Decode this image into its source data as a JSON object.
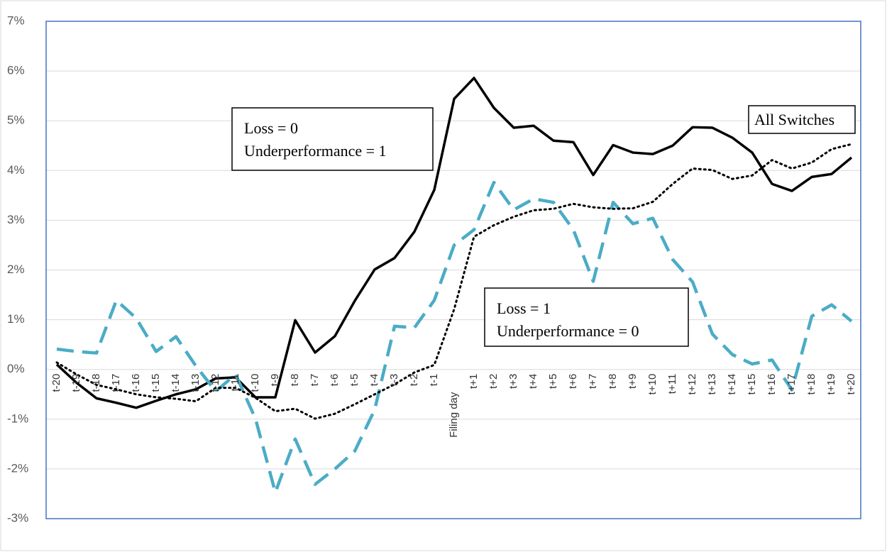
{
  "chart_data": {
    "type": "line",
    "categories": [
      "t-20",
      "t-19",
      "t-18",
      "t-17",
      "t-16",
      "t-15",
      "t-14",
      "t-13",
      "t-12",
      "t-11",
      "t-10",
      "t-9",
      "t-8",
      "t-7",
      "t-6",
      "t-5",
      "t-4",
      "t-3",
      "t-2",
      "t-1",
      "Filing day",
      "t+1",
      "t+2",
      "t+3",
      "t+4",
      "t+5",
      "t+6",
      "t+7",
      "t+8",
      "t+9",
      "t+10",
      "t+11",
      "t+12",
      "t+13",
      "t+14",
      "t+15",
      "t+16",
      "t+17",
      "t+18",
      "t+19",
      "t+20"
    ],
    "series": [
      {
        "color": "#000000",
        "style": "solid",
        "values": [
          0.1,
          -0.27,
          -0.58,
          -0.67,
          -0.77,
          -0.63,
          -0.5,
          -0.4,
          -0.18,
          -0.16,
          -0.56,
          -0.56,
          0.99,
          0.34,
          0.67,
          1.38,
          2.01,
          2.24,
          2.77,
          3.61,
          5.44,
          5.86,
          5.26,
          4.86,
          4.9,
          4.6,
          4.57,
          3.91,
          4.51,
          4.36,
          4.33,
          4.5,
          4.87,
          4.86,
          4.66,
          4.36,
          3.73,
          3.59,
          3.87,
          3.93,
          4.26
        ]
      },
      {
        "color": "#4bacc6",
        "style": "dashed",
        "values": [
          0.41,
          0.36,
          0.33,
          1.39,
          1.03,
          0.36,
          0.66,
          0.07,
          -0.44,
          -0.1,
          -0.99,
          -2.47,
          -1.4,
          -2.31,
          -2.0,
          -1.64,
          -0.81,
          0.87,
          0.84,
          1.39,
          2.5,
          2.81,
          3.76,
          3.21,
          3.43,
          3.36,
          2.81,
          1.77,
          3.36,
          2.93,
          3.04,
          2.21,
          1.76,
          0.71,
          0.3,
          0.11,
          0.19,
          -0.41,
          1.07,
          1.3,
          0.97
        ]
      },
      {
        "color": "#000000",
        "style": "dotted",
        "values": [
          0.14,
          -0.1,
          -0.31,
          -0.4,
          -0.5,
          -0.56,
          -0.59,
          -0.64,
          -0.37,
          -0.37,
          -0.57,
          -0.84,
          -0.79,
          -0.99,
          -0.89,
          -0.7,
          -0.5,
          -0.3,
          -0.06,
          0.09,
          1.21,
          2.67,
          2.9,
          3.07,
          3.2,
          3.23,
          3.33,
          3.26,
          3.23,
          3.24,
          3.37,
          3.73,
          4.04,
          4.01,
          3.83,
          3.9,
          4.21,
          4.04,
          4.16,
          4.43,
          4.53
        ]
      }
    ],
    "ylim": [
      -3,
      7
    ],
    "yticks": [
      {
        "value": -3,
        "label": "-3%"
      },
      {
        "value": -2,
        "label": "-2%"
      },
      {
        "value": -1,
        "label": "-1%"
      },
      {
        "value": 0,
        "label": "0%"
      },
      {
        "value": 1,
        "label": "1%"
      },
      {
        "value": 2,
        "label": "2%"
      },
      {
        "value": 3,
        "label": "3%"
      },
      {
        "value": 4,
        "label": "4%"
      },
      {
        "value": 5,
        "label": "5%"
      },
      {
        "value": 6,
        "label": "6%"
      },
      {
        "value": 7,
        "label": "7%"
      }
    ],
    "grid": true,
    "annotations": [
      {
        "lines": [
          "Loss = 0",
          "Underperformance = 1"
        ]
      },
      {
        "lines": [
          "Loss = 1",
          "Underperformance = 0"
        ]
      },
      {
        "lines": [
          "All Switches"
        ]
      }
    ]
  }
}
